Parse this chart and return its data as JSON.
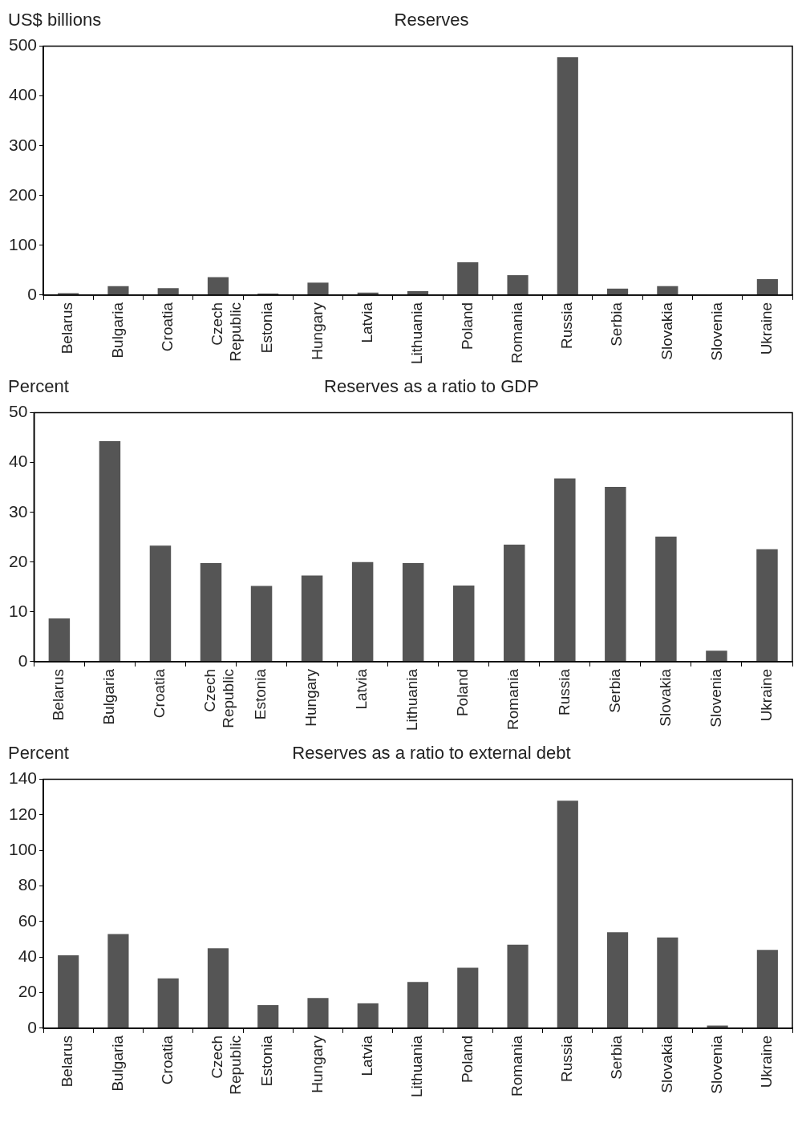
{
  "chart_data": [
    {
      "type": "bar",
      "title": "Reserves",
      "ylabel": "US$ billions",
      "categories": [
        "Belarus",
        "Bulgaria",
        "Croatia",
        "Czech Republic",
        "Estonia",
        "Hungary",
        "Latvia",
        "Lithuania",
        "Poland",
        "Romania",
        "Russia",
        "Serbia",
        "Slovakia",
        "Slovenia",
        "Ukraine"
      ],
      "values": [
        4,
        18,
        14,
        36,
        3,
        25,
        5,
        8,
        66,
        40,
        478,
        13,
        18,
        1,
        32
      ],
      "color": "#555555",
      "ylim": [
        0,
        500
      ],
      "yticks": [
        0,
        100,
        200,
        300,
        400,
        500
      ],
      "grid": false
    },
    {
      "type": "bar",
      "title": "Reserves as a ratio to GDP",
      "ylabel": "Percent",
      "categories": [
        "Belarus",
        "Bulgaria",
        "Croatia",
        "Czech Republic",
        "Estonia",
        "Hungary",
        "Latvia",
        "Lithuania",
        "Poland",
        "Romania",
        "Russia",
        "Serbia",
        "Slovakia",
        "Slovenia",
        "Ukraine"
      ],
      "values": [
        8.7,
        44.3,
        23.3,
        19.8,
        15.2,
        17.3,
        20,
        19.8,
        15.3,
        23.5,
        36.8,
        35.1,
        25.1,
        2.2,
        22.6
      ],
      "color": "#555555",
      "ylim": [
        0,
        50
      ],
      "yticks": [
        0,
        10,
        20,
        30,
        40,
        50
      ],
      "grid": false
    },
    {
      "type": "bar",
      "title": "Reserves as a ratio to external debt",
      "ylabel": "Percent",
      "categories": [
        "Belarus",
        "Bulgaria",
        "Croatia",
        "Czech Republic",
        "Estonia",
        "Hungary",
        "Latvia",
        "Lithuania",
        "Poland",
        "Romania",
        "Russia",
        "Serbia",
        "Slovakia",
        "Slovenia",
        "Ukraine"
      ],
      "values": [
        41,
        53,
        28,
        45,
        13,
        17,
        14,
        26,
        34,
        47,
        128,
        54,
        51,
        1.5,
        44
      ],
      "color": "#555555",
      "ylim": [
        0,
        140
      ],
      "yticks": [
        0,
        20,
        40,
        60,
        80,
        100,
        120,
        140
      ],
      "grid": false
    }
  ]
}
